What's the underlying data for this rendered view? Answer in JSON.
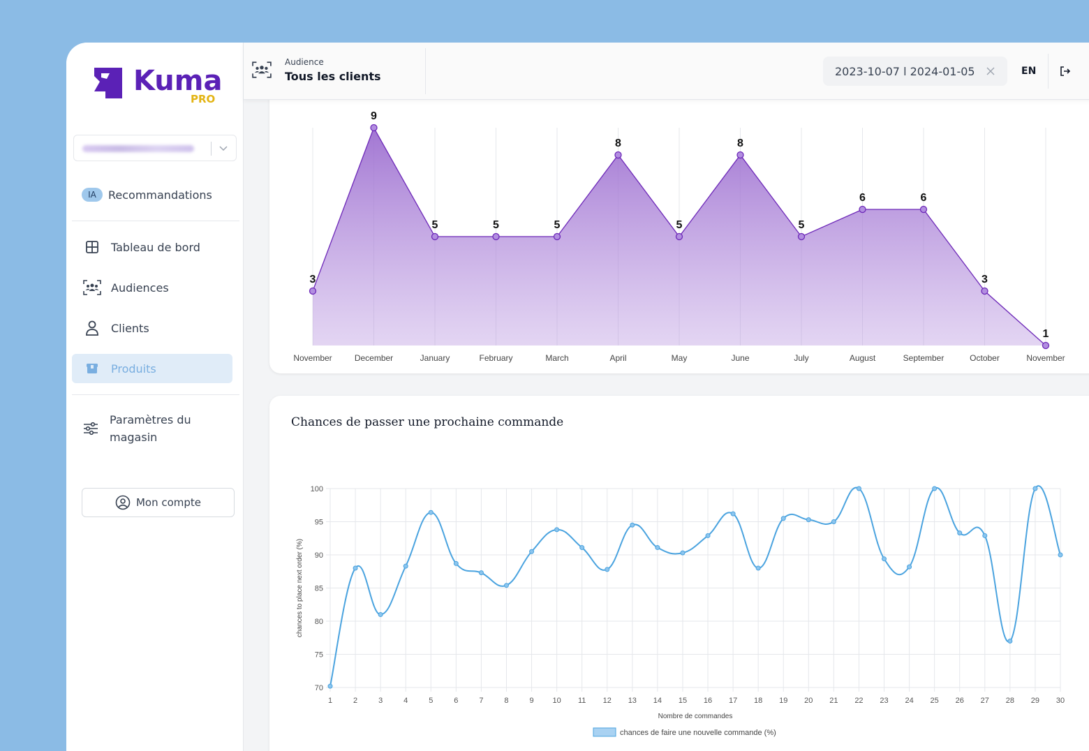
{
  "brand": {
    "name": "Kuma",
    "tier": "PRO"
  },
  "sidebar": {
    "recommendations": {
      "badge": "IA",
      "label": "Recommandations"
    },
    "items": [
      {
        "label": "Tableau de bord",
        "icon": "grid-icon"
      },
      {
        "label": "Audiences",
        "icon": "users-group-icon"
      },
      {
        "label": "Clients",
        "icon": "user-icon"
      },
      {
        "label": "Produits",
        "icon": "box-icon",
        "active": true
      }
    ],
    "settings": {
      "label": "Paramètres du magasin",
      "icon": "sliders-icon"
    },
    "account": {
      "label": "Mon compte",
      "icon": "user-circle-icon"
    }
  },
  "header": {
    "section_label": "Audience",
    "title": "Tous les clients",
    "date_range": "2023-10-07 l 2024-01-05",
    "language": "EN"
  },
  "colors": {
    "accent_purple": "#7e3fbf",
    "line_blue": "#4aa3df",
    "active_text": "#79aee0"
  },
  "chart_data": [
    {
      "type": "area",
      "title": "",
      "categories": [
        "November",
        "December",
        "January",
        "February",
        "March",
        "April",
        "May",
        "June",
        "July",
        "August",
        "September",
        "October",
        "November"
      ],
      "values": [
        3,
        9,
        5,
        5,
        5,
        8,
        5,
        8,
        5,
        6,
        6,
        3,
        1
      ],
      "ylim": [
        1,
        9
      ],
      "grid": "vertical",
      "data_labels": true
    },
    {
      "type": "line",
      "title": "Chances de passer une prochaine commande",
      "xlabel": "Nombre de commandes",
      "ylabel": "chances to place next order (%)",
      "x": [
        1,
        2,
        3,
        4,
        5,
        6,
        7,
        8,
        9,
        10,
        11,
        12,
        13,
        14,
        15,
        16,
        17,
        18,
        19,
        20,
        21,
        22,
        23,
        24,
        25,
        26,
        27,
        28,
        29,
        30
      ],
      "values": [
        70.2,
        88,
        81,
        88.3,
        96.4,
        88.7,
        87.3,
        85.4,
        90.5,
        93.8,
        91.1,
        87.8,
        94.5,
        91.1,
        90.3,
        92.9,
        96.2,
        88,
        95.5,
        95.3,
        95,
        100,
        89.4,
        88.2,
        100,
        93.3,
        92.9,
        77,
        100,
        90
      ],
      "ylim": [
        70,
        100
      ],
      "yticks": [
        70,
        75,
        80,
        85,
        90,
        95,
        100
      ],
      "series": [
        {
          "name": "chances de faire une nouvelle commande (%)",
          "values": [
            70.2,
            88,
            81,
            88.3,
            96.4,
            88.7,
            87.3,
            85.4,
            90.5,
            93.8,
            91.1,
            87.8,
            94.5,
            91.1,
            90.3,
            92.9,
            96.2,
            88,
            95.5,
            95.3,
            95,
            100,
            89.4,
            88.2,
            100,
            93.3,
            92.9,
            77,
            100,
            90
          ]
        }
      ],
      "legend": "bottom",
      "grid": true
    }
  ]
}
